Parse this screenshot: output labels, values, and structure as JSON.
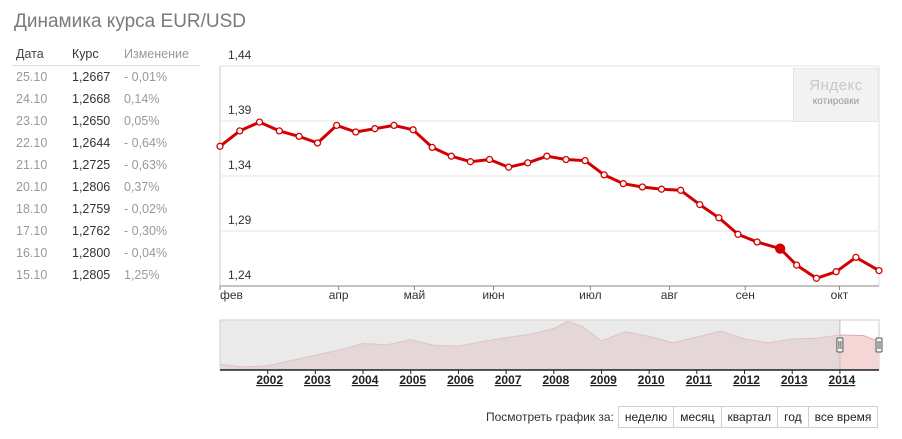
{
  "page": {
    "title": "Динамика курса EUR/USD"
  },
  "table": {
    "headers": {
      "date": "Дата",
      "rate": "Курс",
      "change": "Изменение"
    },
    "rows": [
      {
        "date": "25.10",
        "rate": "1,2667",
        "change": "- 0,01%"
      },
      {
        "date": "24.10",
        "rate": "1,2668",
        "change": "0,14%"
      },
      {
        "date": "23.10",
        "rate": "1,2650",
        "change": "0,05%"
      },
      {
        "date": "22.10",
        "rate": "1,2644",
        "change": "- 0,64%"
      },
      {
        "date": "21.10",
        "rate": "1,2725",
        "change": "- 0,63%"
      },
      {
        "date": "20.10",
        "rate": "1,2806",
        "change": "0,37%"
      },
      {
        "date": "18.10",
        "rate": "1,2759",
        "change": "- 0,02%"
      },
      {
        "date": "17.10",
        "rate": "1,2762",
        "change": "- 0,30%"
      },
      {
        "date": "16.10",
        "rate": "1,2800",
        "change": "- 0,04%"
      },
      {
        "date": "15.10",
        "rate": "1,2805",
        "change": "1,25%"
      }
    ]
  },
  "logo": {
    "main": "Яндекс",
    "sub": "котировки"
  },
  "colors": {
    "line": "#d40000",
    "grid": "#e6e6e6",
    "navigator_fill": "#f4d6d6",
    "navigator_mask": "#e4e4e4"
  },
  "period_selector": {
    "label": "Посмотреть график за:",
    "options": [
      "неделю",
      "месяц",
      "квартал",
      "год",
      "все время"
    ]
  },
  "chart_data": [
    {
      "type": "line",
      "name": "main",
      "ylim": [
        1.24,
        1.44
      ],
      "y_ticks": [
        "1,44",
        "1,39",
        "1,34",
        "1,29",
        "1,24"
      ],
      "y_tick_values": [
        1.44,
        1.39,
        1.34,
        1.29,
        1.24
      ],
      "x_range": [
        0,
        1
      ],
      "x_ticks": [
        {
          "label": "фев",
          "at": 0.0
        },
        {
          "label": "апр",
          "at": 0.18
        },
        {
          "label": "май",
          "at": 0.295
        },
        {
          "label": "июн",
          "at": 0.415
        },
        {
          "label": "июл",
          "at": 0.562
        },
        {
          "label": "авг",
          "at": 0.682
        },
        {
          "label": "сен",
          "at": 0.797
        },
        {
          "label": "окт",
          "at": 0.94
        }
      ],
      "series": [
        {
          "values": [
            1.367,
            1.381,
            1.389,
            1.381,
            1.376,
            1.37,
            1.386,
            1.38,
            1.383,
            1.386,
            1.382,
            1.366,
            1.358,
            1.353,
            1.355,
            1.348,
            1.352,
            1.358,
            1.355,
            1.354,
            1.341,
            1.333,
            1.33,
            1.328,
            1.327,
            1.314,
            1.302,
            1.287,
            1.28,
            1.274,
            1.259,
            1.247,
            1.253,
            1.266,
            1.254
          ],
          "x": [
            0.0,
            0.03,
            0.06,
            0.09,
            0.12,
            0.148,
            0.177,
            0.206,
            0.235,
            0.264,
            0.293,
            0.322,
            0.351,
            0.38,
            0.409,
            0.438,
            0.467,
            0.496,
            0.525,
            0.554,
            0.583,
            0.612,
            0.641,
            0.67,
            0.699,
            0.728,
            0.757,
            0.786,
            0.815,
            0.85,
            0.875,
            0.905,
            0.935,
            0.965,
            1.0
          ],
          "highlight_index": 29
        }
      ]
    },
    {
      "type": "area",
      "name": "navigator",
      "x_ticks": [
        "2002",
        "2003",
        "2004",
        "2005",
        "2006",
        "2007",
        "2008",
        "2009",
        "2010",
        "2011",
        "2012",
        "2013",
        "2014"
      ],
      "ylim": [
        0.85,
        1.6
      ],
      "series": [
        {
          "x": [
            2001.0,
            2001.5,
            2002.0,
            2002.5,
            2003.0,
            2003.5,
            2004.0,
            2004.5,
            2005.0,
            2005.5,
            2006.0,
            2006.5,
            2007.0,
            2007.5,
            2008.0,
            2008.3,
            2008.6,
            2009.0,
            2009.5,
            2010.0,
            2010.5,
            2011.0,
            2011.5,
            2012.0,
            2012.5,
            2013.0,
            2013.5,
            2014.0,
            2014.5,
            2014.82
          ],
          "values": [
            0.92,
            0.88,
            0.9,
            0.98,
            1.06,
            1.14,
            1.24,
            1.22,
            1.3,
            1.21,
            1.2,
            1.27,
            1.33,
            1.38,
            1.47,
            1.58,
            1.5,
            1.28,
            1.42,
            1.35,
            1.25,
            1.34,
            1.43,
            1.31,
            1.25,
            1.31,
            1.32,
            1.37,
            1.36,
            1.27
          ]
        }
      ],
      "selection": [
        2014.0,
        2014.82
      ]
    }
  ]
}
